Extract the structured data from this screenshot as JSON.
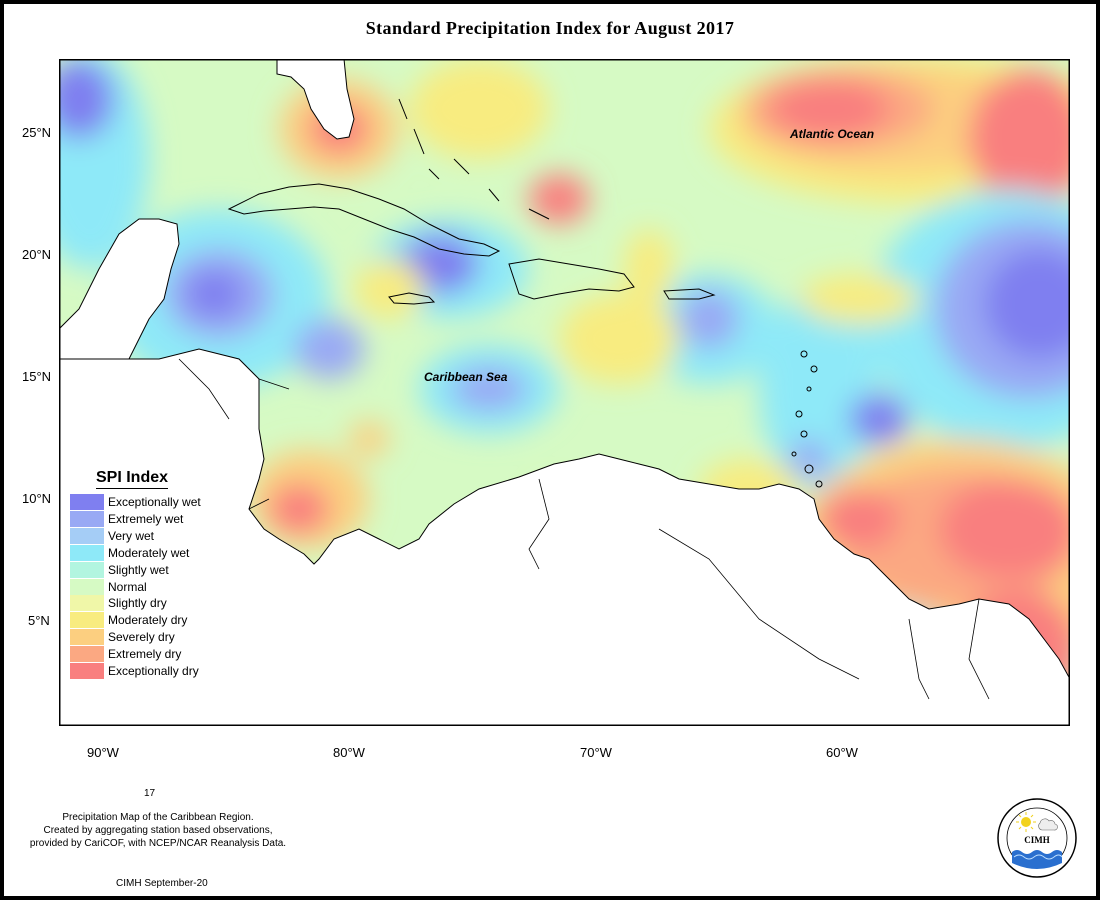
{
  "title": "Standard Precipitation Index for August 2017",
  "lat_ticks": [
    "25°N",
    "20°N",
    "15°N",
    "10°N",
    "5°N"
  ],
  "lon_ticks": [
    "90°W",
    "80°W",
    "70°W",
    "60°W"
  ],
  "map_labels": {
    "atlantic": "Atlantic Ocean",
    "caribbean": "Caribbean Sea"
  },
  "legend": {
    "title": "SPI Index",
    "items": [
      {
        "label": "Exceptionally wet",
        "color": "#7f7ff0"
      },
      {
        "label": "Extremely wet",
        "color": "#99a9f4"
      },
      {
        "label": "Very wet",
        "color": "#a5cdf6"
      },
      {
        "label": "Moderately wet",
        "color": "#8ee9f8"
      },
      {
        "label": "Slightly wet",
        "color": "#b2f5e0"
      },
      {
        "label": "Normal",
        "color": "#d6fac4"
      },
      {
        "label": "Slightly dry",
        "color": "#f0f7a8"
      },
      {
        "label": "Moderately dry",
        "color": "#f8ec80"
      },
      {
        "label": "Severely dry",
        "color": "#fccf80"
      },
      {
        "label": "Extremely dry",
        "color": "#fba882"
      },
      {
        "label": "Exceptionally dry",
        "color": "#f97f7f"
      }
    ]
  },
  "footer": {
    "page_number": "17",
    "line1": "Precipitation Map of the Caribbean Region.",
    "line2": "Created by aggregating station based observations,",
    "line3": "provided by CariCOF, with NCEP/NCAR Reanalysis Data.",
    "credit": "CIMH September-20"
  },
  "logo": {
    "abbrev": "CIMH"
  }
}
